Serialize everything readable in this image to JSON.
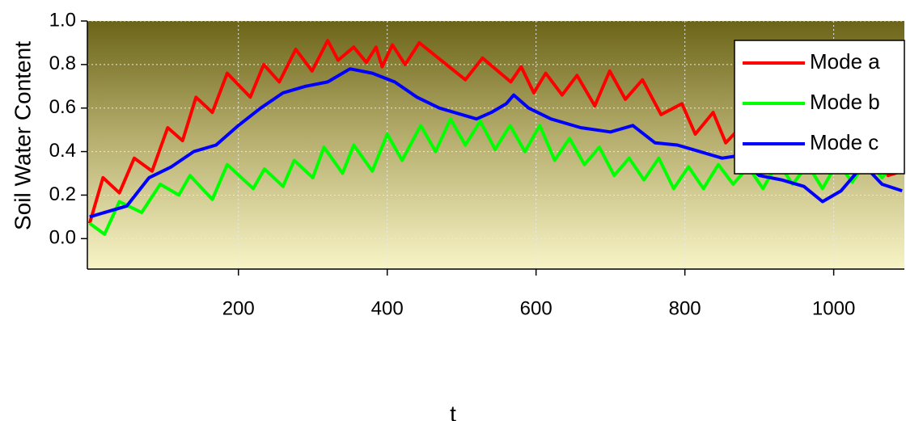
{
  "chart_data": {
    "type": "line",
    "x_label": "t",
    "y_label": "Soil Water Content",
    "xlim": [
      -3,
      1095
    ],
    "ylim": [
      -0.14,
      1.0
    ],
    "xticks": [
      200,
      400,
      600,
      800,
      1000
    ],
    "yticks": [
      {
        "value": 0,
        "label": "0.0"
      },
      0.2,
      0.4,
      0.6,
      0.8,
      {
        "value": 1,
        "label": "1.0"
      }
    ],
    "grid": true,
    "legend": "upper right",
    "series": [
      {
        "name": "Mode a",
        "color": "#ff0000",
        "x": [
          0,
          18,
          40,
          60,
          84,
          105,
          125,
          143,
          165,
          185,
          216,
          234,
          255,
          277,
          299,
          320,
          334,
          355,
          372,
          385,
          393,
          407,
          424,
          443,
          505,
          528,
          566,
          580,
          597,
          613,
          635,
          655,
          679,
          699,
          720,
          743,
          768,
          796,
          814,
          838,
          855,
          877,
          899,
          924,
          948,
          964,
          993,
          1013,
          1037,
          1051,
          1073,
          1092
        ],
        "values": [
          0.07,
          0.28,
          0.21,
          0.37,
          0.31,
          0.51,
          0.45,
          0.65,
          0.58,
          0.76,
          0.65,
          0.8,
          0.72,
          0.87,
          0.77,
          0.91,
          0.82,
          0.88,
          0.81,
          0.88,
          0.79,
          0.89,
          0.8,
          0.9,
          0.73,
          0.83,
          0.72,
          0.79,
          0.67,
          0.76,
          0.66,
          0.75,
          0.61,
          0.77,
          0.64,
          0.73,
          0.57,
          0.62,
          0.48,
          0.58,
          0.44,
          0.52,
          0.39,
          0.52,
          0.36,
          0.46,
          0.35,
          0.44,
          0.31,
          0.43,
          0.29,
          0.31
        ]
      },
      {
        "name": "Mode b",
        "color": "#00ff00",
        "x": [
          0,
          20,
          40,
          70,
          95,
          120,
          135,
          165,
          185,
          220,
          235,
          260,
          275,
          300,
          315,
          340,
          355,
          380,
          400,
          420,
          445,
          465,
          485,
          505,
          525,
          545,
          565,
          585,
          605,
          625,
          645,
          665,
          685,
          705,
          725,
          745,
          765,
          785,
          805,
          825,
          845,
          865,
          885,
          905,
          925,
          945,
          965,
          985,
          1005,
          1025,
          1045,
          1065,
          1085,
          1092
        ],
        "values": [
          0.07,
          0.02,
          0.17,
          0.12,
          0.25,
          0.2,
          0.29,
          0.18,
          0.34,
          0.23,
          0.32,
          0.24,
          0.36,
          0.28,
          0.42,
          0.3,
          0.43,
          0.31,
          0.48,
          0.36,
          0.52,
          0.4,
          0.55,
          0.43,
          0.54,
          0.41,
          0.52,
          0.4,
          0.52,
          0.36,
          0.46,
          0.34,
          0.42,
          0.29,
          0.37,
          0.27,
          0.37,
          0.23,
          0.33,
          0.23,
          0.34,
          0.25,
          0.33,
          0.23,
          0.35,
          0.25,
          0.34,
          0.23,
          0.35,
          0.26,
          0.36,
          0.28,
          0.36,
          0.33
        ]
      },
      {
        "name": "Mode c",
        "color": "#0000ff",
        "x": [
          0,
          50,
          80,
          110,
          140,
          170,
          200,
          230,
          260,
          290,
          320,
          350,
          380,
          410,
          440,
          470,
          500,
          520,
          540,
          560,
          570,
          590,
          620,
          660,
          700,
          730,
          760,
          790,
          820,
          850,
          870,
          900,
          930,
          960,
          985,
          1010,
          1040,
          1065,
          1092
        ],
        "values": [
          0.1,
          0.15,
          0.28,
          0.33,
          0.4,
          0.43,
          0.52,
          0.6,
          0.67,
          0.7,
          0.72,
          0.78,
          0.76,
          0.72,
          0.65,
          0.6,
          0.57,
          0.55,
          0.58,
          0.62,
          0.66,
          0.6,
          0.55,
          0.51,
          0.49,
          0.52,
          0.44,
          0.43,
          0.4,
          0.37,
          0.38,
          0.29,
          0.27,
          0.24,
          0.17,
          0.22,
          0.34,
          0.25,
          0.22
        ]
      }
    ]
  }
}
